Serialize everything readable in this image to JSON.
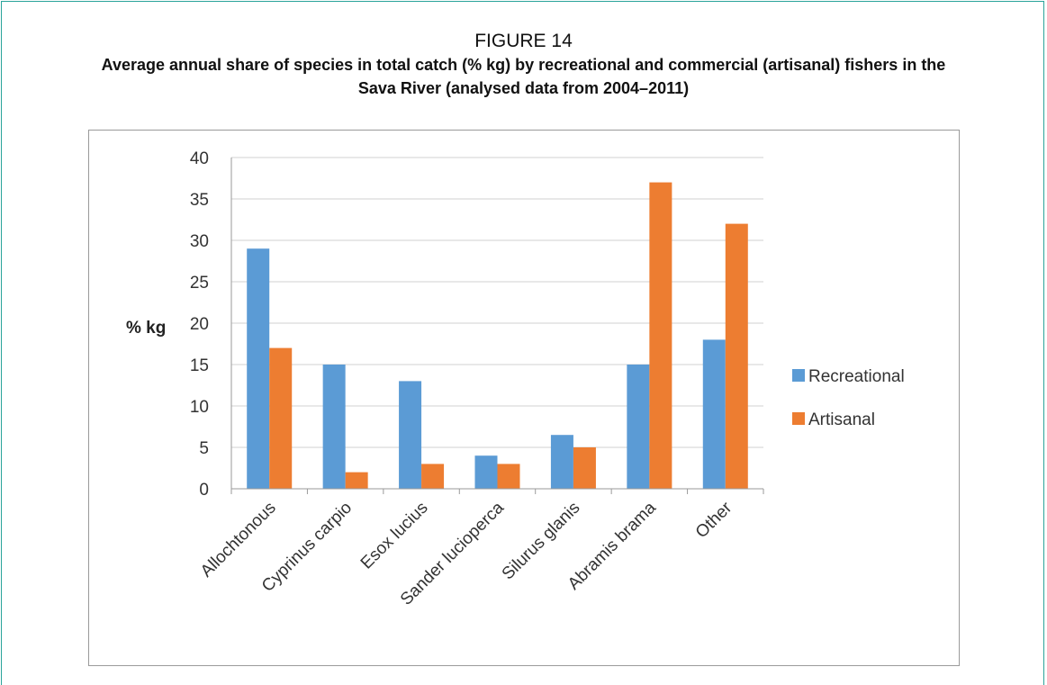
{
  "figure": {
    "label": "FIGURE 14",
    "title": "Average annual share of species in total catch (% kg) by recreational and commercial (artisanal) fishers in the Sava River (analysed data from 2004–2011)"
  },
  "chart_data": {
    "type": "bar",
    "title": "",
    "xlabel": "",
    "ylabel": "% kg",
    "ylim": [
      0,
      40
    ],
    "yticks": [
      "0",
      "5",
      "10",
      "15",
      "20",
      "25",
      "30",
      "35",
      "40"
    ],
    "grid": true,
    "legend_position": "right",
    "categories": [
      "Allochtonous",
      "Cyprinus carpio",
      "Esox lucius",
      "Sander lucioperca",
      "Silurus glanis",
      "Abramis brama",
      "Other"
    ],
    "series": [
      {
        "name": "Recreational",
        "color": "#5b9bd5",
        "values": [
          29,
          15,
          13,
          4,
          6.5,
          15,
          18
        ]
      },
      {
        "name": "Artisanal",
        "color": "#ed7d31",
        "values": [
          17,
          2,
          3,
          3,
          5,
          37,
          32
        ]
      }
    ]
  }
}
